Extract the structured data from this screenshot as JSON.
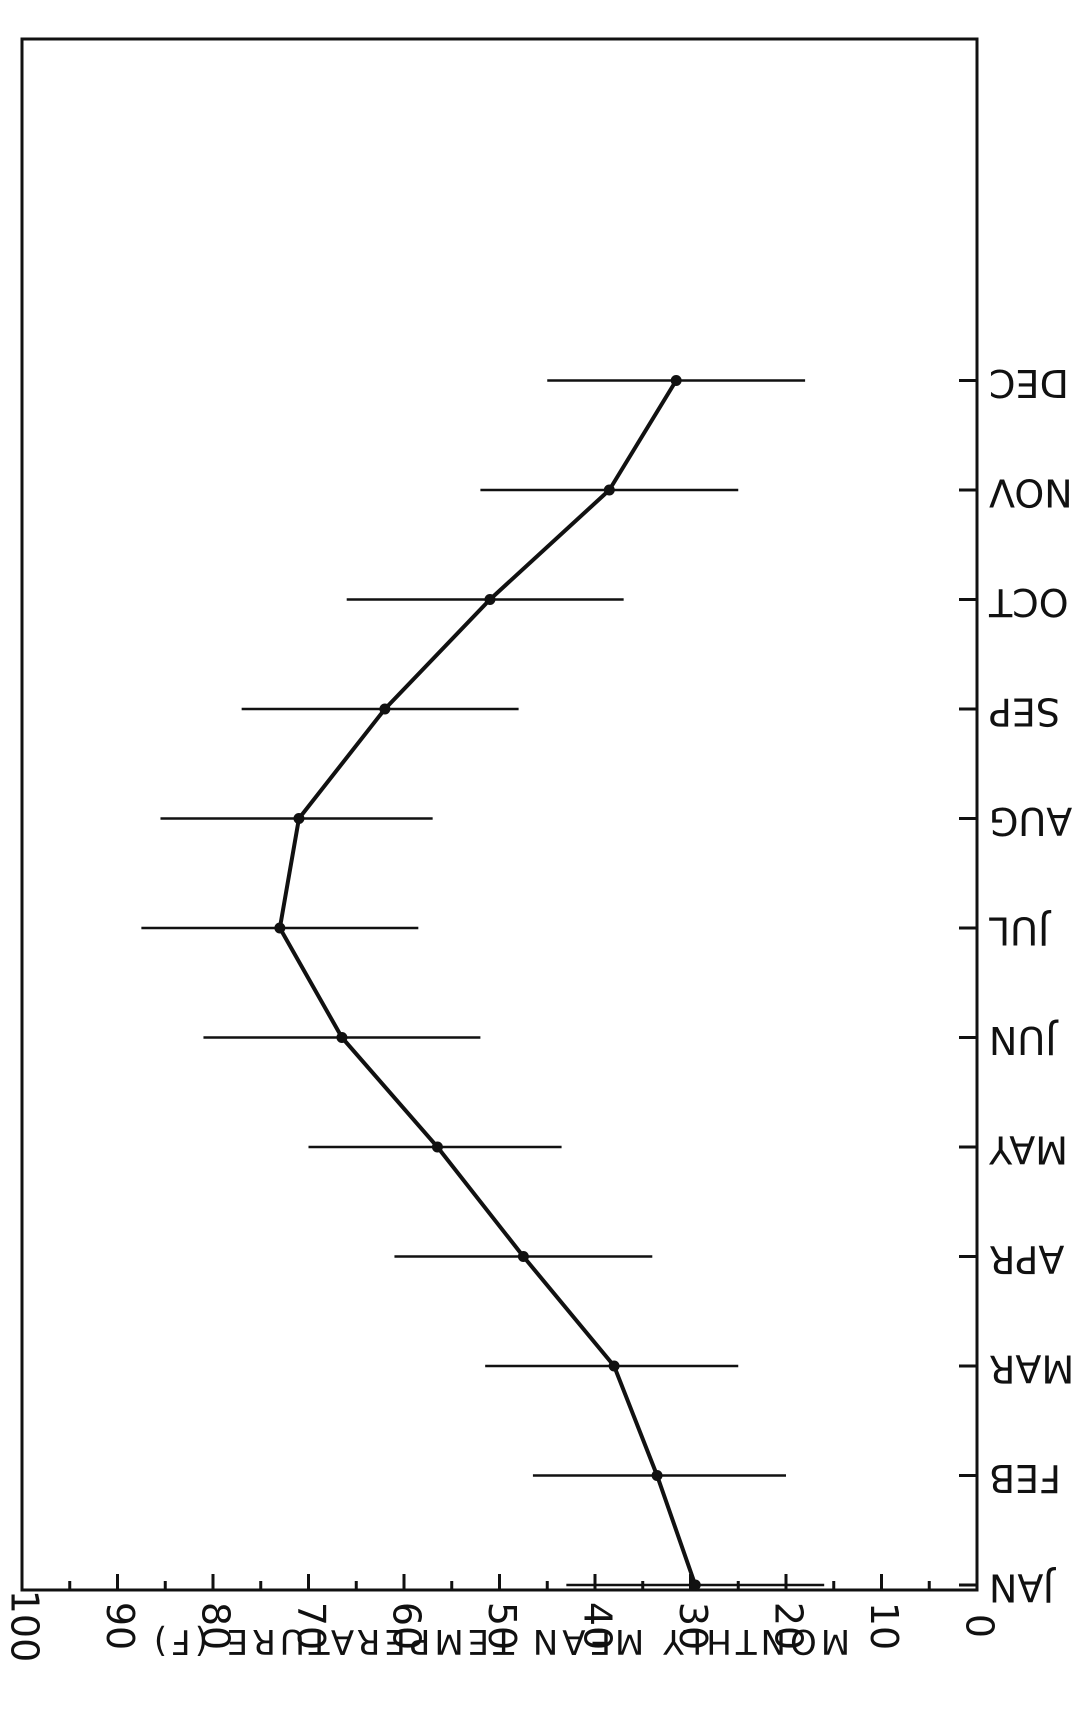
{
  "chart_data": {
    "type": "line",
    "title": "",
    "xlabel": "",
    "ylabel": "MONTHLY MEAN TEMPERATURE (F)",
    "orientation": "rotated 180 degrees (figure printed upside down)",
    "categories": [
      "JAN",
      "FEB",
      "MAR",
      "APR",
      "MAY",
      "JUN",
      "JUL",
      "AUG",
      "SEP",
      "OCT",
      "NOV",
      "DEC"
    ],
    "ylim": [
      0,
      100
    ],
    "yticks": [
      0,
      10,
      20,
      30,
      40,
      50,
      60,
      70,
      80,
      90,
      100
    ],
    "grid": false,
    "legend": "none",
    "series": [
      {
        "values": [
          29.5,
          33.5,
          38,
          47.5,
          56.5,
          66.5,
          73,
          71,
          62,
          51,
          38.5,
          31.5
        ],
        "error_low": [
          16,
          20,
          25,
          34,
          43.5,
          52,
          58.5,
          57,
          48,
          37,
          25,
          18
        ],
        "error_high": [
          43,
          46.5,
          51.5,
          61,
          70,
          81,
          87.5,
          85.5,
          77,
          66,
          52,
          45
        ]
      }
    ]
  }
}
